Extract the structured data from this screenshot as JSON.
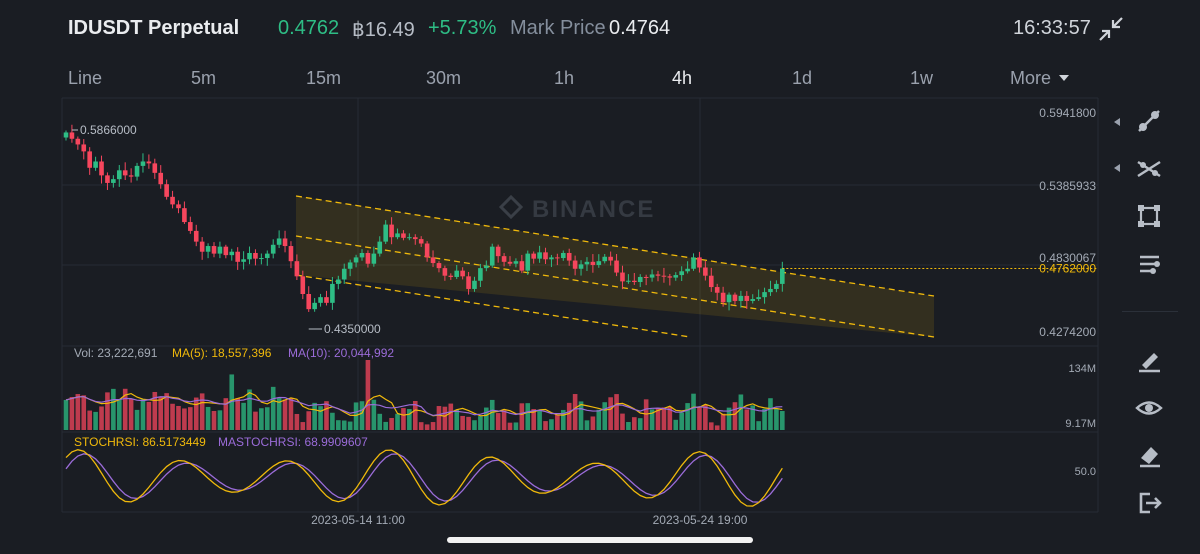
{
  "header": {
    "symbol": "IDUSDT Perpetual",
    "last_price": "0.4762",
    "volume_24h": "฿16.49",
    "change_pct": "+5.73%",
    "mark_label": "Mark Price",
    "mark_price": "0.4764",
    "clock": "16:33:57"
  },
  "tabs": [
    {
      "label": "Line"
    },
    {
      "label": "5m"
    },
    {
      "label": "15m"
    },
    {
      "label": "30m"
    },
    {
      "label": "1h"
    },
    {
      "label": "4h",
      "active": true
    },
    {
      "label": "1d"
    },
    {
      "label": "1w"
    },
    {
      "label": "More"
    }
  ],
  "toolbar_icons": [
    "trend-line-icon",
    "ray-line-icon",
    "rectangle-icon",
    "fibonacci-icon",
    "brush-icon",
    "eye-icon",
    "eraser-icon",
    "exit-icon"
  ],
  "watermark": "BINANCE",
  "colors": {
    "up": "#2ebd85",
    "down": "#f6465d",
    "ma5": "#f0b90b",
    "ma10": "#9b6cd9",
    "background": "#1a1d23",
    "channel": "#f0b90b"
  },
  "chart_data": {
    "type": "candlestick",
    "timeframe": "4h",
    "price_axis": {
      "ticks": [
        "0.5941800",
        "0.5385933",
        "0.4830067",
        "0.4274200"
      ],
      "current_price_label": "0.4762000",
      "range": [
        0.4148,
        0.6113
      ]
    },
    "annotations": {
      "high_label": "0.5866000",
      "low_label": "0.4350000"
    },
    "time_axis": [
      "2023-05-14 11:00",
      "2023-05-24 19:00"
    ],
    "closes": [
      0.584,
      0.579,
      0.5745,
      0.569,
      0.556,
      0.561,
      0.55,
      0.544,
      0.547,
      0.554,
      0.55,
      0.549,
      0.5575,
      0.561,
      0.5595,
      0.552,
      0.543,
      0.533,
      0.527,
      0.524,
      0.513,
      0.506,
      0.4975,
      0.4895,
      0.494,
      0.488,
      0.4935,
      0.4868,
      0.4895,
      0.4815,
      0.4835,
      0.4885,
      0.484,
      0.4845,
      0.488,
      0.495,
      0.5,
      0.494,
      0.482,
      0.47,
      0.456,
      0.444,
      0.449,
      0.4535,
      0.449,
      0.464,
      0.4675,
      0.476,
      0.481,
      0.485,
      0.4885,
      0.48,
      0.488,
      0.4975,
      0.511,
      0.501,
      0.504,
      0.5005,
      0.501,
      0.4995,
      0.496,
      0.485,
      0.4805,
      0.4765,
      0.4705,
      0.4695,
      0.4745,
      0.47,
      0.46,
      0.4665,
      0.4765,
      0.4785,
      0.4935,
      0.486,
      0.4815,
      0.48,
      0.482,
      0.4745,
      0.488,
      0.484,
      0.489,
      0.4835,
      0.485,
      0.4845,
      0.4885,
      0.4825,
      0.476,
      0.4795,
      0.4815,
      0.479,
      0.482,
      0.4855,
      0.4825,
      0.473,
      0.466,
      0.4665,
      0.4655,
      0.4695,
      0.469,
      0.4715,
      0.4705,
      0.47,
      0.469,
      0.471,
      0.474,
      0.476,
      0.485,
      0.477,
      0.4705,
      0.4615,
      0.457,
      0.4495,
      0.4555,
      0.4505,
      0.4545,
      0.4505,
      0.452,
      0.4535,
      0.4575,
      0.46,
      0.464,
      0.4762
    ],
    "volume": {
      "vol_label": "Vol: 23,222,691",
      "ma5_label": "MA(5): 18,557,396",
      "ma10_label": "MA(10): 20,044,992",
      "axis_ticks": [
        "134M",
        "9.17M"
      ]
    },
    "stochrsi": {
      "label": "STOCHRSI: 86.5173449",
      "ma_label": "MASTOCHRSI: 68.9909607",
      "axis_tick": "50.0"
    }
  }
}
